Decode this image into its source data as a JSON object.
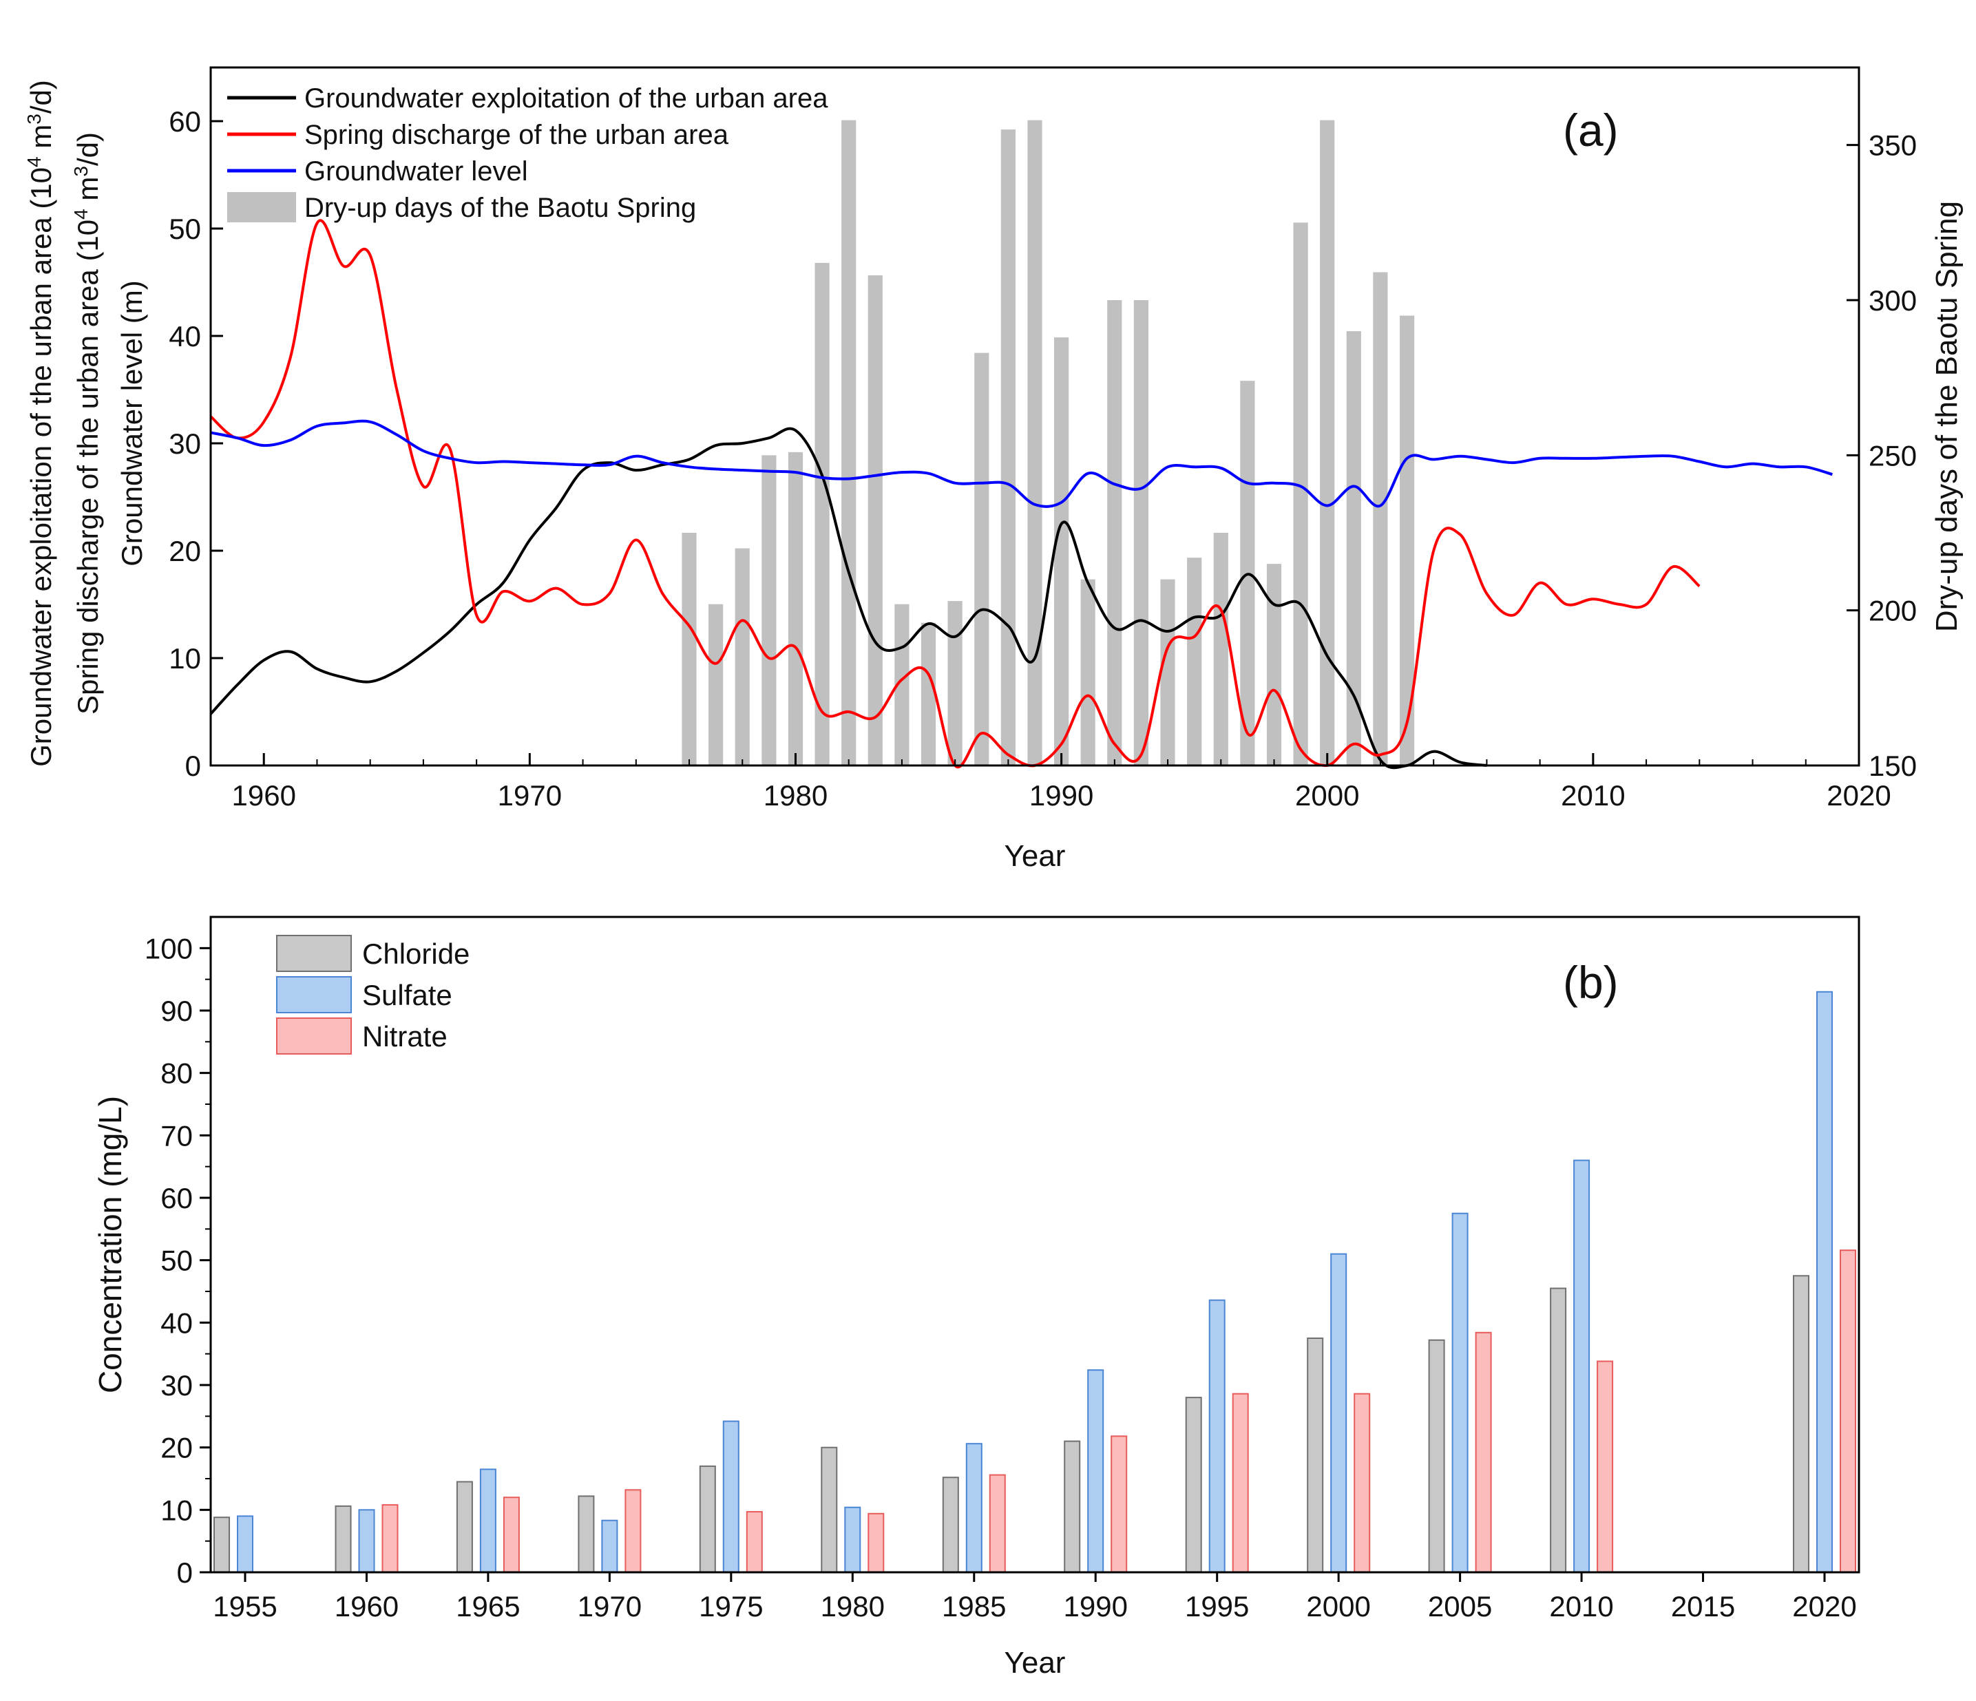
{
  "chart_data": [
    {
      "type": "line",
      "panel_label": "(a)",
      "xlabel": "Year",
      "ylabel_left_lines": [
        [
          "Groundwater exploitation of the urban area (10",
          "4",
          " m",
          "3",
          "/d)"
        ],
        [
          "Spring discharge of the urban area (10",
          "4",
          " m",
          "3",
          "/d)"
        ],
        [
          "Groundwater level (m)"
        ]
      ],
      "ylabel_right": "Dry-up days of the Baotu Spring",
      "xlim": [
        1958,
        2020
      ],
      "ylim": [
        0,
        65
      ],
      "y2lim": [
        150,
        375
      ],
      "xticks": [
        1960,
        1970,
        1980,
        1990,
        2000,
        2010,
        2020
      ],
      "yticks": [
        0,
        10,
        20,
        30,
        40,
        50,
        60
      ],
      "y2ticks": [
        150,
        200,
        250,
        300,
        350
      ],
      "legend": [
        {
          "label": "Groundwater exploitation of the urban area",
          "color": "#000000",
          "kind": "line"
        },
        {
          "label": "Spring discharge of the urban area",
          "color": "#ff0000",
          "kind": "line"
        },
        {
          "label": "Groundwater level",
          "color": "#0000ff",
          "kind": "line"
        },
        {
          "label": "Dry-up days of the Baotu Spring",
          "color": "#c0c0c0",
          "kind": "bar"
        }
      ],
      "series": [
        {
          "name": "Groundwater exploitation of the urban area",
          "axis": "left",
          "color": "#000000",
          "x": [
            1958,
            1959,
            1960,
            1961,
            1962,
            1963,
            1964,
            1965,
            1966,
            1967,
            1968,
            1969,
            1970,
            1971,
            1972,
            1973,
            1974,
            1975,
            1976,
            1977,
            1978,
            1979,
            1980,
            1981,
            1982,
            1983,
            1984,
            1985,
            1986,
            1987,
            1988,
            1989,
            1990,
            1991,
            1992,
            1993,
            1994,
            1995,
            1996,
            1997,
            1998,
            1999,
            2000,
            2001,
            2002,
            2003,
            2004,
            2005,
            2006
          ],
          "y": [
            4.8,
            7.5,
            9.8,
            10.6,
            9.0,
            8.2,
            7.8,
            8.8,
            10.5,
            12.5,
            15,
            17,
            21,
            24,
            27.5,
            28.2,
            27.5,
            28.0,
            28.5,
            29.8,
            30.0,
            30.5,
            31.2,
            27,
            18,
            11.5,
            11,
            13.2,
            12,
            14.5,
            13,
            10,
            22.5,
            17,
            12.8,
            13.5,
            12.5,
            13.8,
            14,
            17.8,
            15,
            15,
            10.2,
            6.5,
            0.5,
            0,
            1.3,
            0.3,
            0
          ]
        },
        {
          "name": "Spring discharge of the urban area",
          "axis": "left",
          "color": "#ff0000",
          "x": [
            1958,
            1959,
            1960,
            1961,
            1962,
            1963,
            1964,
            1965,
            1966,
            1967,
            1968,
            1969,
            1970,
            1971,
            1972,
            1973,
            1974,
            1975,
            1976,
            1977,
            1978,
            1979,
            1980,
            1981,
            1982,
            1983,
            1984,
            1985,
            1986,
            1987,
            1988,
            1989,
            1990,
            1991,
            1992,
            1993,
            1994,
            1995,
            1996,
            1997,
            1998,
            1999,
            2000,
            2001,
            2002,
            2003,
            2004,
            2005,
            2006,
            2007,
            2008,
            2009,
            2010,
            2011,
            2012,
            2013,
            2014
          ],
          "y": [
            32.5,
            30.5,
            32,
            38,
            50.5,
            46.5,
            47.5,
            35,
            26,
            29.5,
            14,
            16.2,
            15.3,
            16.5,
            15,
            16,
            21,
            16,
            13,
            9.5,
            13.5,
            10,
            11,
            5,
            5,
            4.5,
            8,
            8.5,
            0,
            3,
            1,
            0,
            2,
            6.5,
            2,
            1,
            11,
            12,
            14.5,
            3,
            7,
            1.5,
            0,
            2,
            1,
            4,
            20,
            21.5,
            16,
            14,
            17,
            15,
            15.5,
            15,
            15,
            18.5,
            16.7
          ]
        },
        {
          "name": "Groundwater level",
          "axis": "left",
          "color": "#0000ff",
          "x": [
            1958,
            1959,
            1960,
            1961,
            1962,
            1963,
            1964,
            1965,
            1966,
            1967,
            1968,
            1969,
            1970,
            1971,
            1972,
            1973,
            1974,
            1975,
            1976,
            1977,
            1978,
            1979,
            1980,
            1981,
            1982,
            1983,
            1984,
            1985,
            1986,
            1987,
            1988,
            1989,
            1990,
            1991,
            1992,
            1993,
            1994,
            1995,
            1996,
            1997,
            1998,
            1999,
            2000,
            2001,
            2002,
            2003,
            2004,
            2005,
            2006,
            2007,
            2008,
            2009,
            2010,
            2011,
            2012,
            2013,
            2014,
            2015,
            2016,
            2017,
            2018,
            2019
          ],
          "y": [
            31,
            30.5,
            29.8,
            30.3,
            31.6,
            31.9,
            32,
            30.8,
            29.3,
            28.6,
            28.2,
            28.3,
            28.2,
            28.1,
            28.0,
            28.0,
            28.8,
            28.2,
            27.8,
            27.6,
            27.5,
            27.4,
            27.3,
            26.8,
            26.7,
            27,
            27.3,
            27.2,
            26.3,
            26.3,
            26.2,
            24.3,
            24.5,
            27.2,
            26.2,
            25.8,
            27.8,
            27.8,
            27.7,
            26.3,
            26.3,
            26.0,
            24.2,
            26,
            24.2,
            28.6,
            28.5,
            28.8,
            28.5,
            28.2,
            28.6,
            28.6,
            28.6,
            28.7,
            28.8,
            28.8,
            28.3,
            27.8,
            28.1,
            27.8,
            27.8,
            27.1
          ]
        },
        {
          "name": "Dry-up days of the Baotu Spring",
          "axis": "right",
          "type": "bar",
          "color": "#c0c0c0",
          "x": [
            1976,
            1977,
            1978,
            1979,
            1980,
            1981,
            1982,
            1983,
            1984,
            1985,
            1986,
            1987,
            1988,
            1989,
            1990,
            1991,
            1992,
            1993,
            1994,
            1995,
            1996,
            1997,
            1998,
            1999,
            2000,
            2001,
            2002,
            2003
          ],
          "y": [
            225,
            202,
            220,
            250,
            251,
            312,
            358,
            308,
            202,
            196,
            203,
            283,
            355,
            358,
            288,
            210,
            300,
            300,
            210,
            217,
            225,
            274,
            215,
            325,
            358,
            290,
            309,
            295
          ]
        }
      ]
    },
    {
      "type": "bar",
      "panel_label": "(b)",
      "xlabel": "Year",
      "ylabel": "Concentration (mg/L)",
      "ylim": [
        0,
        105
      ],
      "yticks": [
        0,
        10,
        20,
        30,
        40,
        50,
        60,
        70,
        80,
        90,
        100
      ],
      "categories": [
        "1955",
        "1960",
        "1965",
        "1970",
        "1975",
        "1980",
        "1985",
        "1990",
        "1995",
        "2000",
        "2005",
        "2010",
        "2015",
        "2020"
      ],
      "legend": [
        {
          "label": "Chloride",
          "color": "#c8c8c8",
          "edge": "#707070"
        },
        {
          "label": "Sulfate",
          "color": "#adcdf2",
          "edge": "#4a86d4"
        },
        {
          "label": "Nitrate",
          "color": "#fbbcbc",
          "edge": "#e85c5c"
        }
      ],
      "series": [
        {
          "name": "Chloride",
          "values": [
            8.8,
            10.6,
            14.5,
            12.2,
            17.0,
            20.0,
            15.2,
            21.0,
            28.0,
            37.5,
            37.2,
            45.5,
            null,
            47.5
          ]
        },
        {
          "name": "Sulfate",
          "values": [
            9.0,
            10.0,
            16.5,
            8.3,
            24.2,
            10.4,
            20.6,
            32.4,
            43.6,
            51.0,
            57.5,
            66.0,
            null,
            93.0
          ]
        },
        {
          "name": "Nitrate",
          "values": [
            null,
            10.8,
            12.0,
            13.2,
            9.7,
            9.4,
            15.6,
            21.8,
            28.6,
            28.6,
            38.4,
            33.8,
            null,
            51.6
          ]
        }
      ]
    }
  ]
}
